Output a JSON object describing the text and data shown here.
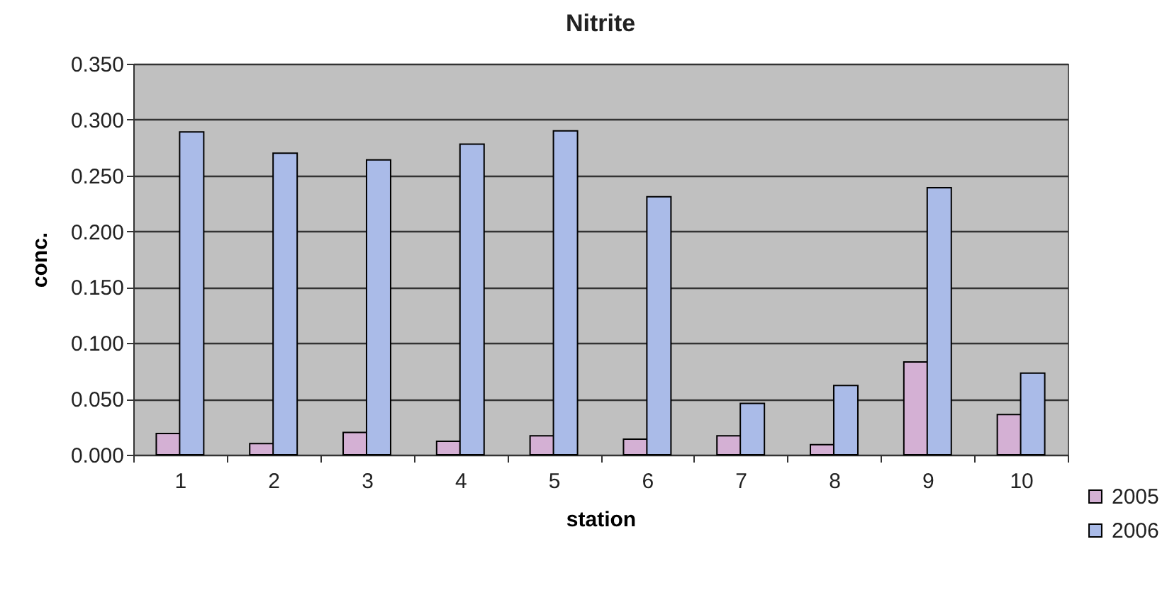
{
  "chart_data": {
    "type": "bar",
    "title": "Nitrite",
    "xlabel": "station",
    "ylabel": "conc.",
    "categories": [
      "1",
      "2",
      "3",
      "4",
      "5",
      "6",
      "7",
      "8",
      "9",
      "10"
    ],
    "series": [
      {
        "name": "2005",
        "color": "#d4b0d4",
        "values": [
          0.019,
          0.01,
          0.02,
          0.012,
          0.017,
          0.014,
          0.017,
          0.009,
          0.083,
          0.036
        ]
      },
      {
        "name": "2006",
        "color": "#aabbe8",
        "values": [
          0.289,
          0.27,
          0.264,
          0.278,
          0.29,
          0.231,
          0.046,
          0.062,
          0.239,
          0.073
        ]
      }
    ],
    "ylim": [
      0,
      0.35
    ],
    "yticks": [
      {
        "value": 0,
        "label": "0.000"
      },
      {
        "value": 0.05,
        "label": "0.050"
      },
      {
        "value": 0.1,
        "label": "0.100"
      },
      {
        "value": 0.15,
        "label": "0.150"
      },
      {
        "value": 0.2,
        "label": "0.200"
      },
      {
        "value": 0.25,
        "label": "0.250"
      },
      {
        "value": 0.3,
        "label": "0.300"
      },
      {
        "value": 0.35,
        "label": "0.350"
      }
    ],
    "grid": "y",
    "legend": "bottom right"
  }
}
